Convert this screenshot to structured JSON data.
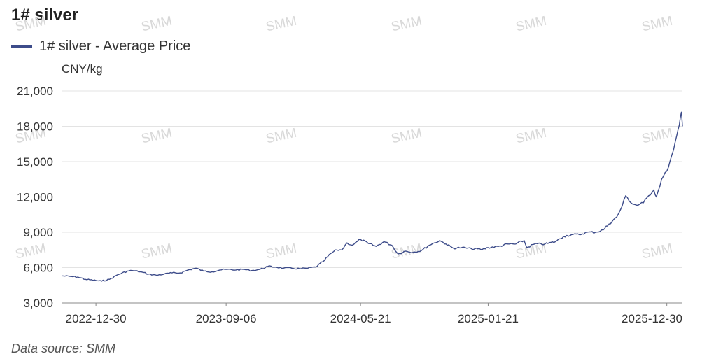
{
  "title": "1# silver",
  "legend": {
    "label": "1# silver - Average Price",
    "color": "#3d4c8a"
  },
  "unit": "CNY/kg",
  "source": "Data source:  SMM",
  "watermark": "SMM",
  "chart_data": {
    "type": "line",
    "ylim": [
      3000,
      21000
    ],
    "yticks": [
      "3,000",
      "6,000",
      "9,000",
      "12,000",
      "15,000",
      "18,000",
      "21,000"
    ],
    "xticks": [
      "2022-12-30",
      "2023-09-06",
      "2024-05-21",
      "2025-01-21",
      "2025-12-30"
    ],
    "grid": true,
    "series": [
      {
        "name": "1# silver - Average Price",
        "color": "#3d4c8a",
        "points": [
          [
            "2022-10-25",
            5300
          ],
          [
            "2022-11-10",
            5250
          ],
          [
            "2022-11-25",
            5200
          ],
          [
            "2022-12-10",
            5000
          ],
          [
            "2022-12-30",
            4900
          ],
          [
            "2023-01-10",
            4850
          ],
          [
            "2023-01-25",
            5000
          ],
          [
            "2023-02-10",
            5400
          ],
          [
            "2023-02-28",
            5700
          ],
          [
            "2023-03-10",
            5750
          ],
          [
            "2023-03-25",
            5650
          ],
          [
            "2023-04-10",
            5450
          ],
          [
            "2023-04-25",
            5350
          ],
          [
            "2023-05-10",
            5450
          ],
          [
            "2023-05-25",
            5550
          ],
          [
            "2023-06-10",
            5550
          ],
          [
            "2023-06-25",
            5800
          ],
          [
            "2023-07-10",
            5950
          ],
          [
            "2023-07-25",
            5700
          ],
          [
            "2023-08-10",
            5650
          ],
          [
            "2023-08-25",
            5800
          ],
          [
            "2023-09-06",
            5850
          ],
          [
            "2023-09-25",
            5800
          ],
          [
            "2023-10-10",
            5850
          ],
          [
            "2023-10-25",
            5750
          ],
          [
            "2023-11-10",
            5850
          ],
          [
            "2023-11-25",
            6100
          ],
          [
            "2023-12-10",
            6050
          ],
          [
            "2023-12-25",
            5950
          ],
          [
            "2024-01-10",
            5950
          ],
          [
            "2024-01-25",
            5900
          ],
          [
            "2024-02-10",
            5950
          ],
          [
            "2024-02-25",
            6050
          ],
          [
            "2024-03-10",
            6500
          ],
          [
            "2024-03-25",
            7200
          ],
          [
            "2024-04-05",
            7500
          ],
          [
            "2024-04-15",
            7500
          ],
          [
            "2024-04-25",
            8100
          ],
          [
            "2024-05-05",
            7900
          ],
          [
            "2024-05-21",
            8400
          ],
          [
            "2024-06-05",
            8050
          ],
          [
            "2024-06-20",
            7800
          ],
          [
            "2024-07-05",
            8200
          ],
          [
            "2024-07-20",
            7900
          ],
          [
            "2024-08-01",
            7150
          ],
          [
            "2024-08-15",
            7400
          ],
          [
            "2024-08-30",
            7300
          ],
          [
            "2024-09-15",
            7450
          ],
          [
            "2024-09-30",
            7900
          ],
          [
            "2024-10-10",
            8100
          ],
          [
            "2024-10-20",
            8300
          ],
          [
            "2024-11-01",
            8000
          ],
          [
            "2024-11-15",
            7650
          ],
          [
            "2024-12-01",
            7700
          ],
          [
            "2024-12-20",
            7600
          ],
          [
            "2025-01-10",
            7550
          ],
          [
            "2025-01-21",
            7700
          ],
          [
            "2025-02-10",
            7800
          ],
          [
            "2025-02-28",
            8000
          ],
          [
            "2025-03-15",
            8000
          ],
          [
            "2025-03-31",
            8300
          ],
          [
            "2025-04-05",
            7700
          ],
          [
            "2025-04-20",
            8000
          ],
          [
            "2025-05-10",
            8000
          ],
          [
            "2025-05-30",
            8200
          ],
          [
            "2025-06-15",
            8650
          ],
          [
            "2025-06-30",
            8800
          ],
          [
            "2025-07-15",
            8800
          ],
          [
            "2025-07-30",
            9000
          ],
          [
            "2025-08-15",
            9000
          ],
          [
            "2025-08-30",
            9200
          ],
          [
            "2025-09-10",
            9700
          ],
          [
            "2025-09-25",
            10300
          ],
          [
            "2025-10-05",
            11200
          ],
          [
            "2025-10-12",
            12100
          ],
          [
            "2025-10-25",
            11400
          ],
          [
            "2025-11-05",
            11300
          ],
          [
            "2025-11-15",
            11500
          ],
          [
            "2025-11-25",
            12100
          ],
          [
            "2025-12-05",
            12600
          ],
          [
            "2025-12-10",
            12000
          ],
          [
            "2025-12-20",
            13500
          ],
          [
            "2025-12-30",
            14200
          ],
          [
            "2026-01-05",
            15000
          ],
          [
            "2026-01-12",
            16000
          ],
          [
            "2026-01-18",
            17200
          ],
          [
            "2026-01-23",
            18100
          ],
          [
            "2026-01-27",
            19200
          ],
          [
            "2026-01-29",
            18000
          ]
        ]
      }
    ]
  }
}
